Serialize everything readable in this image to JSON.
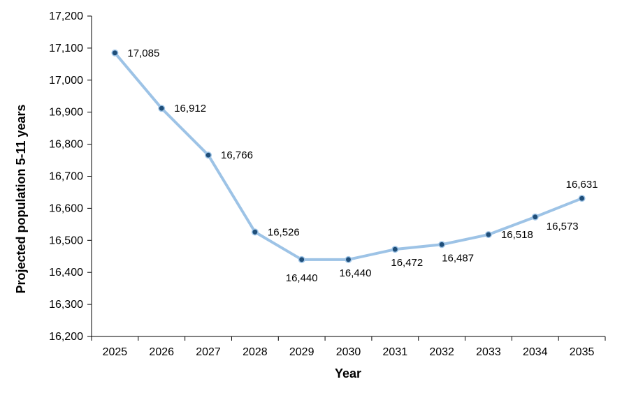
{
  "chart_data": {
    "type": "line",
    "title": "",
    "xlabel": "Year",
    "ylabel": "Projected population 5-11 years",
    "ylim": [
      16200,
      17200
    ],
    "ytick_step": 100,
    "ytick_labels": [
      "16,200",
      "16,300",
      "16,400",
      "16,500",
      "16,600",
      "16,700",
      "16,800",
      "16,900",
      "17,000",
      "17,100",
      "17,200"
    ],
    "categories": [
      "2025",
      "2026",
      "2027",
      "2028",
      "2029",
      "2030",
      "2031",
      "2032",
      "2033",
      "2034",
      "2035"
    ],
    "series": [
      {
        "values": [
          17085,
          16912,
          16766,
          16526,
          16440,
          16440,
          16472,
          16487,
          16518,
          16573,
          16631
        ],
        "labels": [
          "17,085",
          "16,912",
          "16,766",
          "16,526",
          "16,440",
          "16,440",
          "16,472",
          "16,487",
          "16,518",
          "16,573",
          "16,631"
        ],
        "line_color": "#9dc3e6",
        "marker_color": "#1f4e79"
      }
    ],
    "grid": false,
    "legend": "none"
  }
}
